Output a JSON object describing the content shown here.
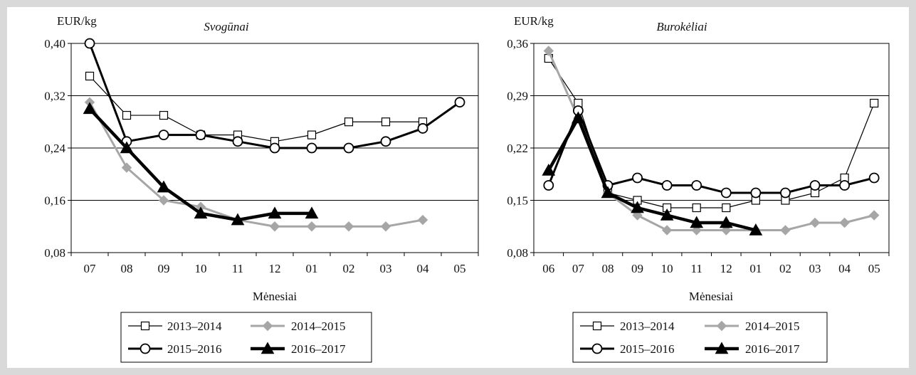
{
  "charts": [
    {
      "title": "Svogūnai",
      "ylabel": "EUR/kg",
      "xlabel": "Mėnesiai",
      "yticks": [
        "0,40",
        "0,32",
        "0,24",
        "0,16",
        "0,08"
      ],
      "xticks": [
        "07",
        "08",
        "09",
        "10",
        "11",
        "12",
        "01",
        "02",
        "03",
        "04",
        "05"
      ],
      "legend": [
        "2013–2014",
        "2014–2015",
        "2015–2016",
        "2016–2017"
      ]
    },
    {
      "title": "Burokėliai",
      "ylabel": "EUR/kg",
      "xlabel": "Mėnesiai",
      "yticks": [
        "0,36",
        "0,29",
        "0,22",
        "0,15",
        "0,08"
      ],
      "xticks": [
        "06",
        "07",
        "08",
        "09",
        "10",
        "11",
        "12",
        "01",
        "02",
        "03",
        "04",
        "05"
      ],
      "legend": [
        "2013–2014",
        "2014–2015",
        "2015–2016",
        "2016–2017"
      ]
    }
  ],
  "chart_data": [
    {
      "type": "line",
      "title": "Svogūnai",
      "ylabel": "EUR/kg",
      "xlabel": "Mėnesiai",
      "categories": [
        "07",
        "08",
        "09",
        "10",
        "11",
        "12",
        "01",
        "02",
        "03",
        "04",
        "05"
      ],
      "ylim": [
        0.08,
        0.4
      ],
      "legend_position": "bottom",
      "grid": true,
      "series": [
        {
          "name": "2013–2014",
          "color": "#000000",
          "marker": "square",
          "values": [
            0.35,
            0.29,
            0.29,
            0.26,
            0.26,
            0.25,
            0.26,
            0.28,
            0.28,
            0.28,
            null
          ]
        },
        {
          "name": "2014–2015",
          "color": "#a6a6a6",
          "marker": "diamond",
          "values": [
            0.31,
            0.21,
            0.16,
            0.15,
            0.13,
            0.12,
            0.12,
            0.12,
            0.12,
            0.13,
            null
          ]
        },
        {
          "name": "2015–2016",
          "color": "#000000",
          "marker": "circle",
          "values": [
            0.4,
            0.25,
            0.26,
            0.26,
            0.25,
            0.24,
            0.24,
            0.24,
            0.25,
            0.27,
            0.31
          ]
        },
        {
          "name": "2016–2017",
          "color": "#000000",
          "marker": "triangle",
          "values": [
            0.3,
            0.24,
            0.18,
            0.14,
            0.13,
            0.14,
            0.14,
            null,
            null,
            null,
            null
          ]
        }
      ]
    },
    {
      "type": "line",
      "title": "Burokėliai",
      "ylabel": "EUR/kg",
      "xlabel": "Mėnesiai",
      "categories": [
        "06",
        "07",
        "08",
        "09",
        "10",
        "11",
        "12",
        "01",
        "02",
        "03",
        "04",
        "05"
      ],
      "ylim": [
        0.08,
        0.36
      ],
      "legend_position": "bottom",
      "grid": true,
      "series": [
        {
          "name": "2013–2014",
          "color": "#000000",
          "marker": "square",
          "values": [
            0.34,
            0.28,
            0.16,
            0.15,
            0.14,
            0.14,
            0.14,
            0.15,
            0.15,
            0.16,
            0.18,
            0.28
          ]
        },
        {
          "name": "2014–2015",
          "color": "#a6a6a6",
          "marker": "diamond",
          "values": [
            0.35,
            0.26,
            0.16,
            0.13,
            0.11,
            0.11,
            0.11,
            0.11,
            0.11,
            0.12,
            0.12,
            0.13
          ]
        },
        {
          "name": "2015–2016",
          "color": "#000000",
          "marker": "circle",
          "values": [
            0.17,
            0.27,
            0.17,
            0.18,
            0.17,
            0.17,
            0.16,
            0.16,
            0.16,
            0.17,
            0.17,
            0.18
          ]
        },
        {
          "name": "2016–2017",
          "color": "#000000",
          "marker": "triangle",
          "values": [
            0.19,
            0.26,
            0.16,
            0.14,
            0.13,
            0.12,
            0.12,
            0.11,
            null,
            null,
            null,
            null
          ]
        }
      ]
    }
  ]
}
